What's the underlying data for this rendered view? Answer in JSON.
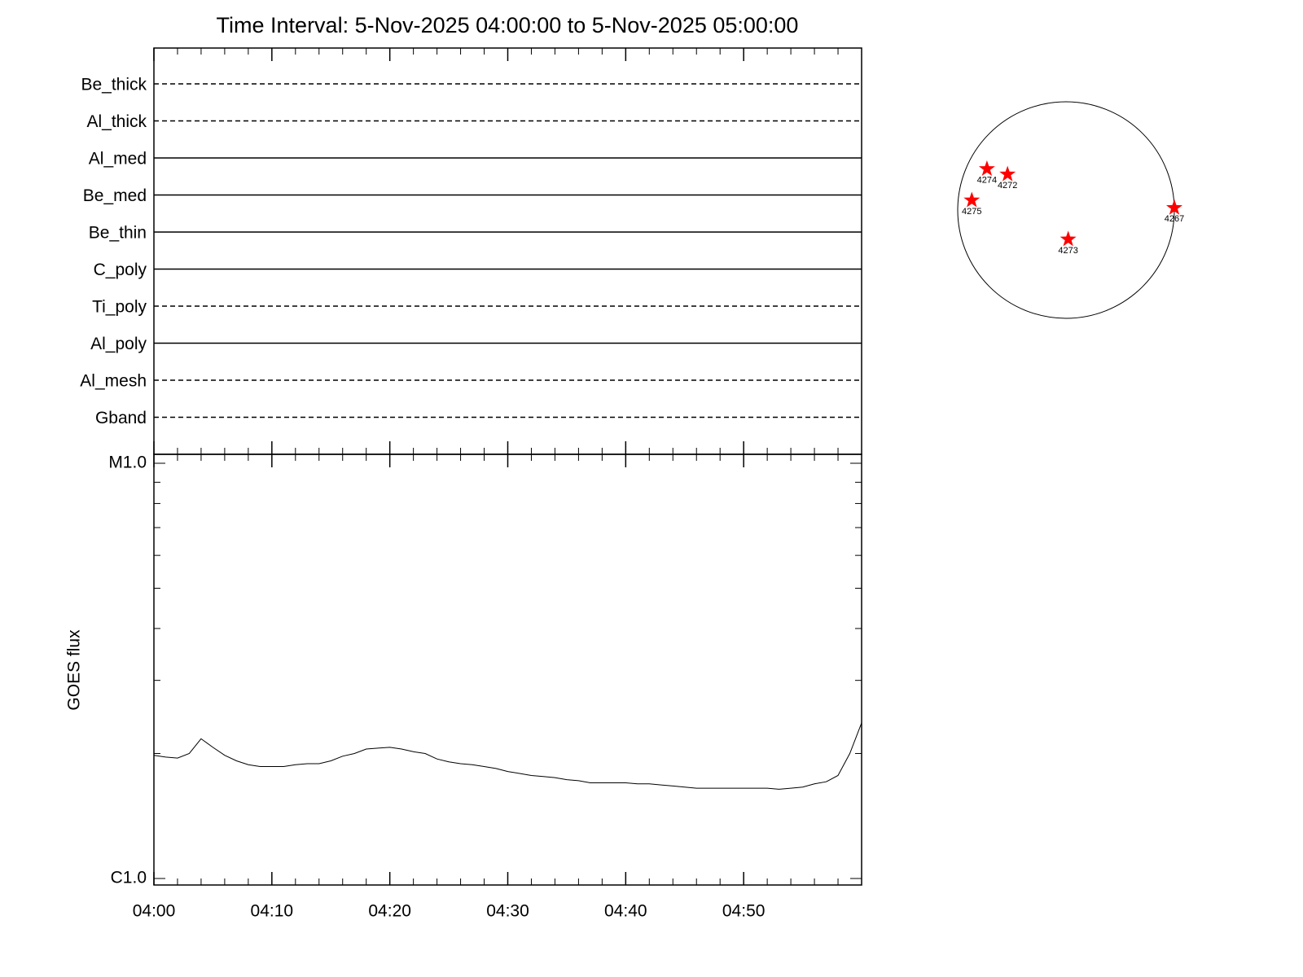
{
  "chart_data": [
    {
      "type": "timeline",
      "title": "Time Interval:  5-Nov-2025 04:00:00 to  5-Nov-2025 05:00:00",
      "categories": [
        "Be_thick",
        "Al_thick",
        "Al_med",
        "Be_med",
        "Be_thin",
        "C_poly",
        "Ti_poly",
        "Al_poly",
        "Al_mesh",
        "Gband"
      ],
      "line_styles": [
        "dashed",
        "dashed",
        "solid",
        "solid",
        "solid",
        "solid",
        "dashed",
        "solid",
        "dashed",
        "dashed"
      ]
    },
    {
      "type": "line",
      "ylabel": "GOES flux",
      "color": "#000000",
      "log_scale": true,
      "x": [
        "04:00",
        "04:01",
        "04:02",
        "04:03",
        "04:04",
        "04:05",
        "04:06",
        "04:07",
        "04:08",
        "04:09",
        "04:10",
        "04:11",
        "04:12",
        "04:13",
        "04:14",
        "04:15",
        "04:16",
        "04:17",
        "04:18",
        "04:19",
        "04:20",
        "04:21",
        "04:22",
        "04:23",
        "04:24",
        "04:25",
        "04:26",
        "04:27",
        "04:28",
        "04:29",
        "04:30",
        "04:31",
        "04:32",
        "04:33",
        "04:34",
        "04:35",
        "04:36",
        "04:37",
        "04:38",
        "04:39",
        "04:40",
        "04:41",
        "04:42",
        "04:43",
        "04:44",
        "04:45",
        "04:46",
        "04:47",
        "04:48",
        "04:49",
        "04:50",
        "04:51",
        "04:52",
        "04:53",
        "04:54",
        "04:55",
        "04:56",
        "04:57",
        "04:58",
        "04:59",
        "05:00"
      ],
      "values": [
        1.98e-06,
        1.96e-06,
        1.95e-06,
        2e-06,
        2.17e-06,
        2.07e-06,
        1.98e-06,
        1.92e-06,
        1.88e-06,
        1.86e-06,
        1.86e-06,
        1.86e-06,
        1.88e-06,
        1.89e-06,
        1.89e-06,
        1.92e-06,
        1.97e-06,
        2e-06,
        2.05e-06,
        2.06e-06,
        2.07e-06,
        2.05e-06,
        2.02e-06,
        2e-06,
        1.94e-06,
        1.91e-06,
        1.89e-06,
        1.88e-06,
        1.86e-06,
        1.84e-06,
        1.81e-06,
        1.79e-06,
        1.77e-06,
        1.76e-06,
        1.75e-06,
        1.73e-06,
        1.72e-06,
        1.7e-06,
        1.7e-06,
        1.7e-06,
        1.7e-06,
        1.69e-06,
        1.69e-06,
        1.68e-06,
        1.67e-06,
        1.66e-06,
        1.65e-06,
        1.65e-06,
        1.65e-06,
        1.65e-06,
        1.65e-06,
        1.65e-06,
        1.65e-06,
        1.64e-06,
        1.65e-06,
        1.66e-06,
        1.69e-06,
        1.71e-06,
        1.77e-06,
        2e-06,
        2.37e-06
      ],
      "xlim": [
        "04:00",
        "05:00"
      ],
      "xticks": [
        "04:00",
        "04:10",
        "04:20",
        "04:30",
        "04:40",
        "04:50"
      ],
      "xminorticks": [
        "04:02",
        "04:04",
        "04:06",
        "04:08",
        "04:12",
        "04:14",
        "04:16",
        "04:18",
        "04:22",
        "04:24",
        "04:26",
        "04:28",
        "04:32",
        "04:34",
        "04:36",
        "04:38",
        "04:42",
        "04:44",
        "04:46",
        "04:48",
        "04:52",
        "04:54",
        "04:56",
        "04:58"
      ],
      "ylim": [
        1e-06,
        1e-05
      ],
      "yticks": [
        {
          "value": 1e-06,
          "label": "C1.0"
        },
        {
          "value": 1e-05,
          "label": "M1.0"
        }
      ],
      "yminorticks": [
        2e-06,
        3e-06,
        4e-06,
        5e-06,
        6e-06,
        7e-06,
        8e-06,
        9e-06
      ]
    },
    {
      "type": "scatter",
      "color": "#ff0000",
      "xlim": [
        -1,
        1
      ],
      "ylim": [
        -1,
        1
      ],
      "labels": [
        "4274",
        "4272",
        "4275",
        "4267",
        "4273"
      ],
      "x": [
        -0.73,
        -0.54,
        -0.87,
        1.0,
        0.02
      ],
      "y": [
        0.38,
        0.33,
        0.09,
        0.02,
        -0.27
      ]
    }
  ]
}
